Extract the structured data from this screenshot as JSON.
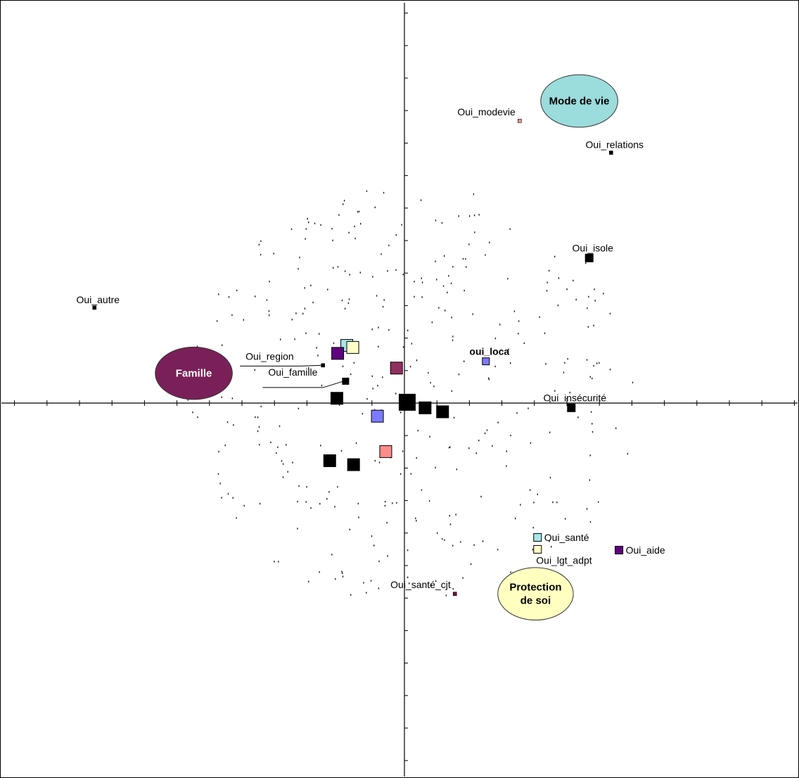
{
  "chart_data": {
    "type": "scatter",
    "title": "",
    "xlabel": "",
    "ylabel": "",
    "grid": false,
    "legend": "none",
    "xlim": [
      -1.0,
      1.0
    ],
    "ylim": [
      -1.0,
      1.0
    ],
    "labeled_points": [
      {
        "label": "Oui_modevie",
        "x": 0.29,
        "y": 0.71,
        "size": 5,
        "color": "#ff8a8a",
        "label_side": "left-above"
      },
      {
        "label": "Oui_relations",
        "x": 0.52,
        "y": 0.63,
        "size": 5,
        "color": "#000000",
        "label_side": "above"
      },
      {
        "label": "Oui_isole",
        "x": 0.465,
        "y": 0.365,
        "size": 11,
        "color": "#000000",
        "label_side": "above"
      },
      {
        "label": "Oui_autre",
        "x": -0.78,
        "y": 0.24,
        "size": 5,
        "color": "#000000",
        "label_side": "above"
      },
      {
        "label": "oui_loca",
        "x": 0.205,
        "y": 0.105,
        "size": 10,
        "color": "#7b7bff",
        "label_side": "above",
        "bold": true
      },
      {
        "label": "Oui_region",
        "x": -0.205,
        "y": 0.095,
        "size": 5,
        "color": "#000000",
        "label_side": "leader"
      },
      {
        "label": "Oui_famille",
        "x": -0.148,
        "y": 0.055,
        "size": 9,
        "color": "#000000",
        "label_side": "leader"
      },
      {
        "label": "Oui_insécurité",
        "x": 0.42,
        "y": -0.012,
        "size": 11,
        "color": "#000000",
        "label_side": "above"
      },
      {
        "label": "Oui_santé",
        "x": 0.335,
        "y": -0.338,
        "size": 11,
        "color": "#a6e6e6",
        "label_side": "right"
      },
      {
        "label": "Oui_lgt_adpt",
        "x": 0.335,
        "y": -0.368,
        "size": 11,
        "color": "#ffffc8",
        "label_side": "below"
      },
      {
        "label": "Oui_aide",
        "x": 0.54,
        "y": -0.37,
        "size": 11,
        "color": "#600080",
        "label_side": "right"
      },
      {
        "label": "Oui_santé_cjt",
        "x": 0.127,
        "y": -0.48,
        "size": 5,
        "color": "#800040",
        "label_side": "left-above"
      }
    ],
    "unlabeled_points": [
      {
        "x": -0.145,
        "y": 0.145,
        "size": 17,
        "color": "#a6e6e6"
      },
      {
        "x": -0.13,
        "y": 0.14,
        "size": 17,
        "color": "#ffffc8"
      },
      {
        "x": -0.168,
        "y": 0.125,
        "size": 17,
        "color": "#600080"
      },
      {
        "x": -0.02,
        "y": 0.088,
        "size": 17,
        "color": "#903060"
      },
      {
        "x": 0.007,
        "y": 0.002,
        "size": 23,
        "color": "#000000"
      },
      {
        "x": 0.052,
        "y": -0.012,
        "size": 17,
        "color": "#000000"
      },
      {
        "x": 0.096,
        "y": -0.022,
        "size": 17,
        "color": "#000000"
      },
      {
        "x": -0.17,
        "y": 0.012,
        "size": 17,
        "color": "#000000"
      },
      {
        "x": -0.068,
        "y": -0.033,
        "size": 17,
        "color": "#7b7bff"
      },
      {
        "x": -0.047,
        "y": -0.122,
        "size": 17,
        "color": "#ff8a8a"
      },
      {
        "x": -0.188,
        "y": -0.145,
        "size": 17,
        "color": "#000000"
      },
      {
        "x": -0.128,
        "y": -0.155,
        "size": 17,
        "color": "#000000"
      }
    ],
    "groups": [
      {
        "label": "Mode de vie",
        "x": 0.44,
        "y": 0.76,
        "rx": 0.097,
        "ry": 0.066,
        "fill": "#9bdcdc",
        "text_color": "#000000"
      },
      {
        "label": "Famille",
        "x": -0.53,
        "y": 0.075,
        "rx": 0.097,
        "ry": 0.066,
        "fill": "#7a2058",
        "text_color": "#ffffff"
      },
      {
        "label": "Protection\nde soi",
        "x": 0.33,
        "y": -0.48,
        "rx": 0.095,
        "ry": 0.066,
        "fill": "#ffffc0",
        "text_color": "#000000"
      }
    ]
  }
}
